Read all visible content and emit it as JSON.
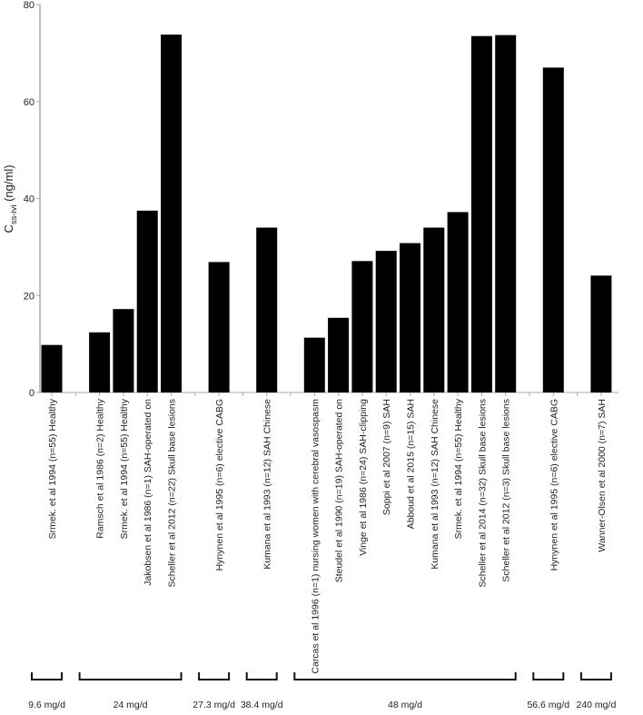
{
  "chart_data": {
    "type": "bar",
    "title": "",
    "xlabel": "",
    "ylabel": "Css-ivi (ng/ml)",
    "ylabel_parts": {
      "main": "C",
      "sub": "ss-ivi",
      "unit": " (ng/ml)"
    },
    "ylim": [
      0,
      80
    ],
    "yticks": [
      0,
      20,
      40,
      60,
      80
    ],
    "grid": false,
    "legend": null,
    "bar_color": "#000000",
    "axis_color": "#a8a8a8",
    "categories": [
      "Srmek. et al 1994 (n=55) Healthy",
      "",
      "Ramsch et al 1986 (n=2) Healthy",
      "Srmek. et al 1994 (n=55) Healthy",
      "Jakobsen et al 1986 (n=1) SAH-operated on",
      "Scheller et al 2012 (n=22) Skull base lesions",
      "",
      "Hynynen et al 1995 (n=6) elective CABG",
      "",
      "Kumana et al 1993 (n=12) SAH Chinese",
      "",
      "Carcas et al 1996 (n=1) nursing women with cerebral vasospasm",
      "Steudel et al 1990 (n=19) SAH-operated on",
      "Vinge et al 1986 (n=24) SAH-clipping",
      "Soppi et al 2007 (n=9) SAH",
      "Abboud et al 2015 (n=15) SAH",
      "Kumana et al 1993 (n=12) SAH Chinese",
      "Srmek. et al 1994 (n=55) Healthy",
      "Scheller et al 2014 (n=32) Skull base lesions",
      "Scheller et al 2012 (n=3) Skull base lesions",
      "",
      "Hynynen et al 1995 (n=6) elective CABG",
      "",
      "Wanner-Olsen et al 2000 (n=7) SAH"
    ],
    "values": [
      9.8,
      null,
      12.4,
      17.2,
      37.5,
      73.8,
      null,
      26.9,
      null,
      34.0,
      null,
      11.3,
      15.4,
      27.1,
      29.2,
      30.8,
      34.0,
      37.2,
      73.5,
      73.7,
      null,
      67.0,
      null,
      24.1
    ],
    "dose_groups": [
      {
        "label": "9.6 mg/d",
        "start": 0,
        "end": 0
      },
      {
        "label": "24 mg/d",
        "start": 2,
        "end": 5
      },
      {
        "label": "27.3 mg/d",
        "start": 7,
        "end": 7
      },
      {
        "label": "38.4 mg/d",
        "start": 9,
        "end": 9
      },
      {
        "label": "48 mg/d",
        "start": 11,
        "end": 19
      },
      {
        "label": "56.6 mg/d",
        "start": 21,
        "end": 21
      },
      {
        "label": "240 mg/d",
        "start": 23,
        "end": 23
      }
    ]
  }
}
